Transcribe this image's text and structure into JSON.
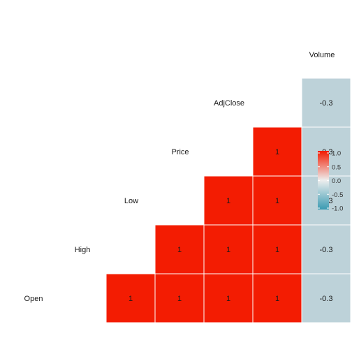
{
  "chart_data": {
    "type": "heatmap",
    "variables": [
      "Open",
      "High",
      "Low",
      "Price",
      "AdjClose",
      "Volume"
    ],
    "matrix": [
      [
        null,
        null,
        null,
        null,
        null,
        null
      ],
      [
        1,
        null,
        null,
        null,
        null,
        null
      ],
      [
        1,
        1,
        null,
        null,
        null,
        null
      ],
      [
        1,
        1,
        1,
        null,
        null,
        null
      ],
      [
        1,
        1,
        1,
        1,
        null,
        null
      ],
      [
        -0.3,
        -0.3,
        -0.3,
        -0.3,
        -0.3,
        null
      ]
    ],
    "legend": {
      "ticks": [
        1.0,
        0.5,
        0.0,
        -0.5,
        -1.0
      ],
      "tick_labels": [
        "1.0",
        "0.5",
        "0.0",
        "-0.5",
        "-1.0"
      ],
      "range": [
        -1,
        1
      ],
      "placement": "right"
    },
    "colors": {
      "high": "#f21a00",
      "mid": "#eeeeee",
      "low": "#3a9ab2",
      "neg_cell": "#bdd2d9",
      "pos_cell": "#f31c02"
    },
    "title": "",
    "xlabel": "",
    "ylabel": ""
  }
}
